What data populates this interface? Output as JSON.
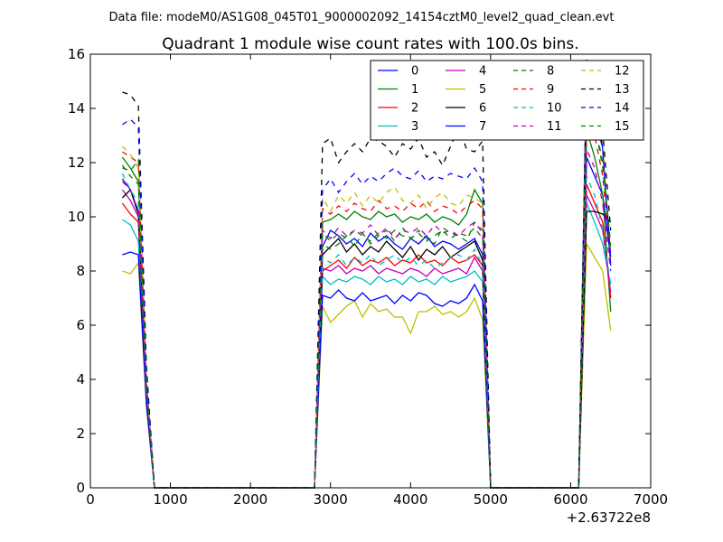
{
  "figure": {
    "suptitle": "Data file: modeM0/AS1G08_045T01_9000002092_14154cztM0_level2_quad_clean.evt"
  },
  "chart_data": {
    "type": "line",
    "title": "Quadrant 1 module wise count rates with 100.0s bins.",
    "xlabel": "",
    "ylabel": "",
    "x_offset_label": "+2.63722e8",
    "xlim": [
      0,
      7000
    ],
    "ylim": [
      0,
      16
    ],
    "xticks": [
      0,
      1000,
      2000,
      3000,
      4000,
      5000,
      6000,
      7000
    ],
    "yticks": [
      0,
      2,
      4,
      6,
      8,
      10,
      12,
      14,
      16
    ],
    "xtick_labels": [
      "0",
      "1000",
      "2000",
      "3000",
      "4000",
      "5000",
      "6000",
      "7000"
    ],
    "ytick_labels": [
      "0",
      "2",
      "4",
      "6",
      "8",
      "10",
      "12",
      "14",
      "16"
    ],
    "grid": false,
    "legend": {
      "placement": "top-right",
      "columns": 4
    },
    "x": [
      400,
      500,
      600,
      700,
      800,
      900,
      1000,
      1100,
      1200,
      1300,
      1400,
      1500,
      1600,
      1700,
      1800,
      1900,
      2000,
      2100,
      2200,
      2300,
      2400,
      2500,
      2600,
      2700,
      2800,
      2900,
      3000,
      3100,
      3200,
      3300,
      3400,
      3500,
      3600,
      3700,
      3800,
      3900,
      4000,
      4100,
      4200,
      4300,
      4400,
      4500,
      4600,
      4700,
      4800,
      4900,
      5000,
      5100,
      5200,
      5300,
      5400,
      5500,
      5600,
      5700,
      5800,
      5900,
      6000,
      6100,
      6200,
      6300,
      6400,
      6500
    ],
    "series": [
      {
        "name": "0",
        "color": "#0000ff",
        "dash": "solid",
        "values": [
          11.4,
          11.0,
          10.2,
          3.8,
          0,
          0,
          0,
          0,
          0,
          0,
          0,
          0,
          0,
          0,
          0,
          0,
          0,
          0,
          0,
          0,
          0,
          0,
          0,
          0,
          0,
          8.9,
          9.5,
          9.3,
          9.0,
          9.2,
          8.9,
          9.4,
          9.1,
          9.3,
          9.0,
          8.8,
          9.2,
          9.0,
          9.3,
          8.9,
          9.1,
          9.0,
          8.8,
          9.0,
          9.2,
          8.6,
          0,
          0,
          0,
          0,
          0,
          0,
          0,
          0,
          0,
          0,
          0,
          0,
          12.2,
          11.5,
          10.8,
          8.5
        ]
      },
      {
        "name": "1",
        "color": "#008000",
        "dash": "solid",
        "values": [
          12.2,
          11.8,
          11.3,
          3.9,
          0,
          0,
          0,
          0,
          0,
          0,
          0,
          0,
          0,
          0,
          0,
          0,
          0,
          0,
          0,
          0,
          0,
          0,
          0,
          0,
          0,
          9.8,
          9.9,
          10.1,
          9.9,
          10.2,
          10.0,
          9.9,
          10.2,
          10.0,
          10.1,
          9.8,
          10.0,
          9.9,
          10.1,
          9.8,
          10.0,
          9.9,
          9.7,
          10.1,
          11.0,
          10.5,
          0,
          0,
          0,
          0,
          0,
          0,
          0,
          0,
          0,
          0,
          0,
          0,
          13.2,
          12.2,
          10.8,
          6.5
        ]
      },
      {
        "name": "2",
        "color": "#ff0000",
        "dash": "solid",
        "values": [
          10.5,
          10.1,
          9.8,
          3.5,
          0,
          0,
          0,
          0,
          0,
          0,
          0,
          0,
          0,
          0,
          0,
          0,
          0,
          0,
          0,
          0,
          0,
          0,
          0,
          0,
          0,
          8.0,
          8.2,
          8.4,
          8.1,
          8.5,
          8.2,
          8.4,
          8.3,
          8.5,
          8.2,
          8.4,
          8.3,
          8.6,
          8.3,
          8.4,
          8.2,
          8.5,
          8.3,
          8.4,
          8.6,
          8.2,
          0,
          0,
          0,
          0,
          0,
          0,
          0,
          0,
          0,
          0,
          0,
          0,
          11.2,
          10.5,
          9.8,
          7.0
        ]
      },
      {
        "name": "3",
        "color": "#00bfbf",
        "dash": "solid",
        "values": [
          9.9,
          9.7,
          9.1,
          3.3,
          0,
          0,
          0,
          0,
          0,
          0,
          0,
          0,
          0,
          0,
          0,
          0,
          0,
          0,
          0,
          0,
          0,
          0,
          0,
          0,
          0,
          7.8,
          7.5,
          7.7,
          7.6,
          7.8,
          7.7,
          7.5,
          7.8,
          7.6,
          7.7,
          7.5,
          7.8,
          7.6,
          7.7,
          7.5,
          7.8,
          7.6,
          7.7,
          7.8,
          8.0,
          7.6,
          0,
          0,
          0,
          0,
          0,
          0,
          0,
          0,
          0,
          0,
          0,
          0,
          10.5,
          9.8,
          9.0,
          7.5
        ]
      },
      {
        "name": "4",
        "color": "#bf00bf",
        "dash": "solid",
        "values": [
          11.0,
          10.6,
          10.0,
          3.6,
          0,
          0,
          0,
          0,
          0,
          0,
          0,
          0,
          0,
          0,
          0,
          0,
          0,
          0,
          0,
          0,
          0,
          0,
          0,
          0,
          0,
          8.1,
          8.0,
          8.2,
          7.9,
          8.1,
          8.0,
          8.2,
          7.9,
          8.1,
          8.0,
          7.9,
          8.1,
          8.0,
          7.8,
          8.1,
          7.9,
          8.0,
          8.1,
          7.9,
          8.5,
          8.0,
          0,
          0,
          0,
          0,
          0,
          0,
          0,
          0,
          0,
          0,
          0,
          0,
          10.8,
          10.2,
          9.5,
          7.2
        ]
      },
      {
        "name": "5",
        "color": "#bfbf00",
        "dash": "solid",
        "values": [
          8.0,
          7.9,
          8.3,
          3.0,
          0,
          0,
          0,
          0,
          0,
          0,
          0,
          0,
          0,
          0,
          0,
          0,
          0,
          0,
          0,
          0,
          0,
          0,
          0,
          0,
          0,
          6.7,
          6.1,
          6.4,
          6.7,
          6.9,
          6.3,
          6.8,
          6.5,
          6.6,
          6.3,
          6.3,
          5.7,
          6.5,
          6.5,
          6.7,
          6.4,
          6.5,
          6.3,
          6.5,
          7.0,
          6.2,
          0,
          0,
          0,
          0,
          0,
          0,
          0,
          0,
          0,
          0,
          0,
          0,
          9.0,
          8.5,
          8.0,
          5.8
        ]
      },
      {
        "name": "6",
        "color": "#000000",
        "dash": "solid",
        "values": [
          10.7,
          11.0,
          10.1,
          3.6,
          0,
          0,
          0,
          0,
          0,
          0,
          0,
          0,
          0,
          0,
          0,
          0,
          0,
          0,
          0,
          0,
          0,
          0,
          0,
          0,
          0,
          8.6,
          8.9,
          9.2,
          8.7,
          9.0,
          8.6,
          8.9,
          8.7,
          9.1,
          8.8,
          8.5,
          8.9,
          8.4,
          8.8,
          8.6,
          8.9,
          8.5,
          8.7,
          8.9,
          9.1,
          8.4,
          0,
          0,
          0,
          0,
          0,
          0,
          0,
          0,
          0,
          0,
          0,
          0,
          10.2,
          10.2,
          10.1,
          9.8
        ]
      },
      {
        "name": "7",
        "color": "#0000ff",
        "dash": "solid",
        "values": [
          8.6,
          8.7,
          8.6,
          3.1,
          0,
          0,
          0,
          0,
          0,
          0,
          0,
          0,
          0,
          0,
          0,
          0,
          0,
          0,
          0,
          0,
          0,
          0,
          0,
          0,
          0,
          7.1,
          7.0,
          7.3,
          7.0,
          6.9,
          7.2,
          6.9,
          7.0,
          7.1,
          6.8,
          7.1,
          6.9,
          7.2,
          7.1,
          6.8,
          6.7,
          6.9,
          6.8,
          7.0,
          7.5,
          6.9,
          0,
          0,
          0,
          0,
          0,
          0,
          0,
          0,
          0,
          0,
          0,
          0,
          15.8,
          14.8,
          12.5,
          8.2
        ]
      },
      {
        "name": "8",
        "color": "#008000",
        "dash": "dashed",
        "values": [
          11.8,
          11.7,
          12.1,
          3.9,
          0,
          0,
          0,
          0,
          0,
          0,
          0,
          0,
          0,
          0,
          0,
          0,
          0,
          0,
          0,
          0,
          0,
          0,
          0,
          0,
          0,
          9.0,
          8.8,
          9.0,
          9.3,
          8.9,
          9.4,
          9.0,
          9.3,
          9.5,
          9.1,
          9.6,
          9.2,
          9.5,
          9.2,
          9.0,
          9.6,
          9.4,
          9.3,
          9.1,
          9.8,
          9.5,
          0,
          0,
          0,
          0,
          0,
          0,
          0,
          0,
          0,
          0,
          0,
          0,
          14.0,
          13.5,
          12.0,
          9.0
        ]
      },
      {
        "name": "9",
        "color": "#ff0000",
        "dash": "dashed",
        "values": [
          12.4,
          12.2,
          12.0,
          4.0,
          0,
          0,
          0,
          0,
          0,
          0,
          0,
          0,
          0,
          0,
          0,
          0,
          0,
          0,
          0,
          0,
          0,
          0,
          0,
          0,
          0,
          10.3,
          10.1,
          10.4,
          10.2,
          10.5,
          10.3,
          10.2,
          10.6,
          10.3,
          10.4,
          10.2,
          10.5,
          10.3,
          10.6,
          10.2,
          10.4,
          10.3,
          10.1,
          10.4,
          10.6,
          10.3,
          0,
          0,
          0,
          0,
          0,
          0,
          0,
          0,
          0,
          0,
          0,
          0,
          13.5,
          13.0,
          11.5,
          8.5
        ]
      },
      {
        "name": "10",
        "color": "#00bfbf",
        "dash": "dashed",
        "values": [
          11.6,
          11.0,
          10.5,
          3.7,
          0,
          0,
          0,
          0,
          0,
          0,
          0,
          0,
          0,
          0,
          0,
          0,
          0,
          0,
          0,
          0,
          0,
          0,
          0,
          0,
          0,
          8.5,
          8.3,
          8.6,
          8.2,
          8.5,
          8.3,
          8.6,
          8.2,
          8.4,
          8.6,
          8.3,
          8.5,
          8.2,
          8.4,
          8.1,
          8.3,
          8.5,
          8.6,
          8.4,
          8.8,
          8.2,
          0,
          0,
          0,
          0,
          0,
          0,
          0,
          0,
          0,
          0,
          0,
          0,
          11.5,
          10.8,
          9.5,
          7.5
        ]
      },
      {
        "name": "11",
        "color": "#bf00bf",
        "dash": "dashed",
        "values": [
          11.3,
          11.0,
          10.2,
          3.6,
          0,
          0,
          0,
          0,
          0,
          0,
          0,
          0,
          0,
          0,
          0,
          0,
          0,
          0,
          0,
          0,
          0,
          0,
          0,
          0,
          0,
          9.5,
          9.2,
          9.6,
          9.3,
          9.5,
          9.4,
          9.7,
          9.3,
          9.6,
          9.2,
          9.5,
          9.4,
          9.6,
          9.3,
          9.7,
          9.4,
          9.5,
          9.3,
          9.6,
          9.8,
          9.4,
          0,
          0,
          0,
          0,
          0,
          0,
          0,
          0,
          0,
          0,
          0,
          0,
          12.5,
          11.8,
          10.5,
          8.0
        ]
      },
      {
        "name": "12",
        "color": "#bfbf00",
        "dash": "dashed",
        "values": [
          12.6,
          12.3,
          11.8,
          4.0,
          0,
          0,
          0,
          0,
          0,
          0,
          0,
          0,
          0,
          0,
          0,
          0,
          0,
          0,
          0,
          0,
          0,
          0,
          0,
          0,
          0,
          10.7,
          10.2,
          10.8,
          10.5,
          10.9,
          10.4,
          10.8,
          10.5,
          10.9,
          11.1,
          10.6,
          10.5,
          10.8,
          10.3,
          10.7,
          10.9,
          10.5,
          10.4,
          10.8,
          10.7,
          10.5,
          0,
          0,
          0,
          0,
          0,
          0,
          0,
          0,
          0,
          0,
          0,
          0,
          15.2,
          14.5,
          12.8,
          8.5
        ]
      },
      {
        "name": "13",
        "color": "#000000",
        "dash": "dashed",
        "values": [
          14.6,
          14.5,
          14.1,
          4.5,
          0,
          0,
          0,
          0,
          0,
          0,
          0,
          0,
          0,
          0,
          0,
          0,
          0,
          0,
          0,
          0,
          0,
          0,
          0,
          0,
          0,
          12.7,
          12.9,
          12.0,
          12.4,
          12.7,
          12.4,
          12.9,
          12.8,
          12.6,
          12.2,
          12.7,
          12.5,
          12.9,
          12.2,
          12.4,
          11.9,
          12.6,
          13.3,
          12.5,
          12.4,
          12.8,
          0,
          0,
          0,
          0,
          0,
          0,
          0,
          0,
          0,
          0,
          0,
          0,
          15.4,
          15.0,
          13.2,
          9.5
        ]
      },
      {
        "name": "14",
        "color": "#0000ff",
        "dash": "dashed",
        "values": [
          13.4,
          13.6,
          13.3,
          4.3,
          0,
          0,
          0,
          0,
          0,
          0,
          0,
          0,
          0,
          0,
          0,
          0,
          0,
          0,
          0,
          0,
          0,
          0,
          0,
          0,
          0,
          11.0,
          11.4,
          10.9,
          11.3,
          11.6,
          11.2,
          11.5,
          11.3,
          11.6,
          11.8,
          11.5,
          11.4,
          11.7,
          11.3,
          11.5,
          11.4,
          11.6,
          11.5,
          11.4,
          11.8,
          11.3,
          0,
          0,
          0,
          0,
          0,
          0,
          0,
          0,
          0,
          0,
          0,
          0,
          14.8,
          13.8,
          12.5,
          8.5
        ]
      },
      {
        "name": "15",
        "color": "#008000",
        "dash": "dashed",
        "values": [
          11.9,
          11.5,
          11.2,
          3.8,
          0,
          0,
          0,
          0,
          0,
          0,
          0,
          0,
          0,
          0,
          0,
          0,
          0,
          0,
          0,
          0,
          0,
          0,
          0,
          0,
          0,
          9.4,
          9.1,
          9.4,
          9.2,
          9.5,
          9.3,
          9.1,
          9.4,
          9.2,
          9.5,
          9.3,
          9.2,
          9.4,
          9.1,
          9.3,
          9.5,
          9.2,
          9.4,
          9.3,
          9.6,
          9.2,
          0,
          0,
          0,
          0,
          0,
          0,
          0,
          0,
          0,
          0,
          0,
          0,
          14.5,
          13.5,
          11.8,
          8.8
        ]
      }
    ]
  }
}
